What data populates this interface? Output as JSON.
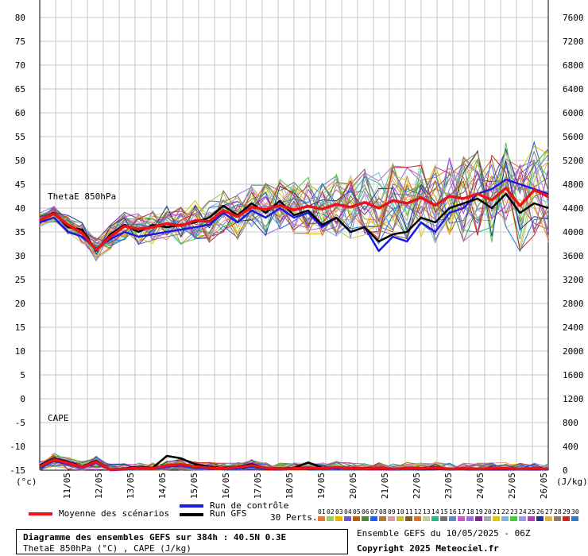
{
  "chart_data": {
    "type": "line",
    "left_axis": {
      "unit_label": "(°c)",
      "ylim": [
        -15,
        80
      ],
      "ticks": [
        80,
        75,
        70,
        65,
        60,
        55,
        50,
        45,
        40,
        35,
        30,
        25,
        20,
        15,
        10,
        5,
        0,
        -5,
        -10,
        -15
      ]
    },
    "right_axis": {
      "unit_label": "(J/kg)",
      "ticks": [
        7600,
        7200,
        6800,
        6400,
        6000,
        5600,
        5200,
        4800,
        4400,
        4000,
        3600,
        3200,
        2800,
        2400,
        2000,
        1600,
        1200,
        800,
        400,
        0
      ]
    },
    "x_dates": [
      "11/05",
      "12/05",
      "13/05",
      "14/05",
      "15/05",
      "16/05",
      "17/05",
      "18/05",
      "19/05",
      "20/05",
      "21/05",
      "22/05",
      "23/05",
      "24/05",
      "25/05",
      "26/05"
    ],
    "x_range_days": [
      0,
      16
    ],
    "grid": true,
    "annotations": [
      "ThetaE 850hPa",
      "CAPE"
    ],
    "thetae_mean": {
      "name": "Moyenne des scénarios",
      "color": "#e8141a",
      "values": [
        37.5,
        38.8,
        36.5,
        34.8,
        31.2,
        34.0,
        36.2,
        35.6,
        36.0,
        36.8,
        36.3,
        37.4,
        37.2,
        39.5,
        38.2,
        40.2,
        39.7,
        40.6,
        39.6,
        40.4,
        39.8,
        40.8,
        40.2,
        41.2,
        40.0,
        41.6,
        41.0,
        42.2,
        40.6,
        42.5,
        42.0,
        43.0,
        41.7,
        44.2,
        40.5,
        43.8,
        42.4
      ]
    },
    "thetae_control": {
      "name": "Run de contrôle",
      "color": "#1a1ae0",
      "values": [
        37.0,
        38.0,
        35.0,
        34.0,
        31.5,
        33.5,
        35.0,
        34.0,
        34.5,
        35.0,
        35.5,
        36.0,
        36.5,
        39.0,
        37.0,
        39.5,
        38.0,
        40.0,
        38.0,
        39.0,
        36.0,
        38.0,
        35.0,
        36.0,
        31.0,
        34.0,
        33.0,
        37.0,
        35.0,
        39.0,
        40.0,
        43.0,
        44.0,
        46.0,
        45.0,
        44.0,
        43.0
      ]
    },
    "thetae_gfs": {
      "name": "Run GFS",
      "color": "#000000",
      "values": [
        37.5,
        39.0,
        36.0,
        35.5,
        31.0,
        34.5,
        36.5,
        35.0,
        36.5,
        36.0,
        36.5,
        37.0,
        38.0,
        40.5,
        38.5,
        41.0,
        39.0,
        41.5,
        38.5,
        39.5,
        36.5,
        38.0,
        35.0,
        36.0,
        33.0,
        34.5,
        35.0,
        38.0,
        37.0,
        40.0,
        41.0,
        42.0,
        40.0,
        43.0,
        39.0,
        41.0,
        40.0
      ]
    },
    "cape_mean": {
      "name": "Moyenne des scénarios",
      "color": "#e8141a",
      "values": [
        60,
        180,
        120,
        50,
        140,
        10,
        20,
        40,
        30,
        80,
        100,
        60,
        40,
        30,
        50,
        80,
        40,
        20,
        30,
        40,
        30,
        50,
        30,
        30,
        40,
        20,
        30,
        30,
        40,
        20,
        30,
        20,
        30,
        30,
        20,
        30,
        20
      ]
    },
    "cape_control": {
      "name": "Run de contrôle",
      "color": "#1a1ae0",
      "values": [
        40,
        160,
        100,
        40,
        120,
        0,
        10,
        30,
        20,
        60,
        80,
        40,
        20,
        20,
        30,
        60,
        20,
        10,
        20,
        20,
        20,
        30,
        20,
        20,
        20,
        10,
        20,
        10,
        20,
        10,
        20,
        10,
        10,
        10,
        10,
        10,
        10
      ]
    },
    "cape_gfs": {
      "name": "Run GFS",
      "color": "#000000",
      "values": [
        80,
        200,
        140,
        60,
        160,
        10,
        30,
        60,
        40,
        240,
        200,
        100,
        60,
        40,
        60,
        100,
        40,
        30,
        40,
        130,
        40,
        40,
        30,
        30,
        40,
        20,
        40,
        40,
        50,
        20,
        30,
        20,
        40,
        30,
        20,
        30,
        20
      ]
    },
    "perturbation_colors": [
      "#e07a3a",
      "#9acd5a",
      "#e8b800",
      "#7b52c8",
      "#b0601c",
      "#4a8a3a",
      "#1e64e0",
      "#b07838",
      "#e09aa0",
      "#c8c030",
      "#8a5a2a",
      "#e07020",
      "#c8c8a0",
      "#20b890",
      "#707070",
      "#5a8ac8",
      "#c85ac8",
      "#a06ae0",
      "#7a2a8a",
      "#a8a8a8",
      "#d8c818",
      "#7ab8e0",
      "#4ac840",
      "#9a9ae0",
      "#b040b0",
      "#1a3a8a",
      "#e0b040",
      "#8a7a6a",
      "#c82a2a",
      "#2a7ad0"
    ]
  },
  "legend": {
    "mean_label": "Moyenne des scénarios",
    "control_label": "Run de contrôle",
    "gfs_label": "Run GFS",
    "perts_label": "30 Perts.",
    "pert_numbers": [
      "01",
      "02",
      "03",
      "04",
      "05",
      "06",
      "07",
      "08",
      "09",
      "10",
      "11",
      "12",
      "13",
      "14",
      "15",
      "16",
      "17",
      "18",
      "19",
      "20",
      "21",
      "22",
      "23",
      "24",
      "25",
      "26",
      "27",
      "28",
      "29",
      "30"
    ]
  },
  "infobox": {
    "title": "Diagramme des ensembles GEFS sur 384h : 40.5N 0.3E",
    "subtitle": "ThetaE 850hPa (°C) , CAPE (J/kg)"
  },
  "run_info": "Ensemble GEFS du 10/05/2025 - 06Z",
  "copyright": "Copyright 2025 Meteociel.fr"
}
